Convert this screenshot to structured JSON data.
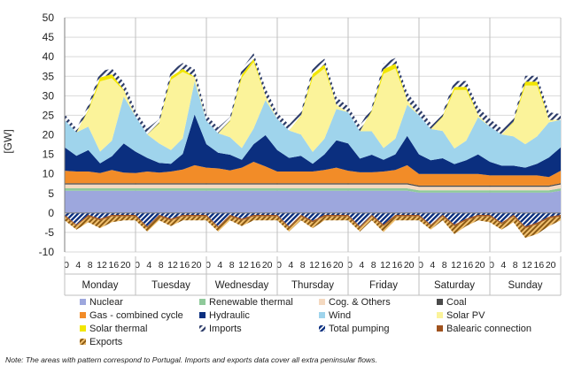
{
  "chart_data": {
    "type": "area",
    "ylabel": "[GW]",
    "ylim": [
      -10,
      50
    ],
    "yticks": [
      50,
      45,
      40,
      35,
      30,
      25,
      20,
      15,
      10,
      5,
      0,
      -5,
      -10
    ],
    "grid": true,
    "legend_position": "bottom",
    "days": [
      "Monday",
      "Tuesday",
      "Wednesday",
      "Thursday",
      "Friday",
      "Saturday",
      "Sunday"
    ],
    "hour_labels": [
      "0",
      "4",
      "8",
      "12",
      "16",
      "20"
    ],
    "x_hours": [
      0,
      4,
      8,
      12,
      16,
      20
    ],
    "series": [
      {
        "name": "Nuclear",
        "color": "#9da7dd",
        "pattern": false,
        "values": [
          [
            5.7,
            5.7,
            5.7,
            5.7,
            5.7,
            5.7
          ],
          [
            5.7,
            5.7,
            5.7,
            5.7,
            5.7,
            5.7
          ],
          [
            5.7,
            5.7,
            5.7,
            5.7,
            5.7,
            5.7
          ],
          [
            5.7,
            5.7,
            5.7,
            5.7,
            5.7,
            5.7
          ],
          [
            5.7,
            5.7,
            5.7,
            5.7,
            5.7,
            5.7
          ],
          [
            5.2,
            5.2,
            5.2,
            5.2,
            5.2,
            5.2
          ],
          [
            5.2,
            5.2,
            5.2,
            5.2,
            5.2,
            5.2
          ]
        ]
      },
      {
        "name": "Renewable thermal",
        "color": "#8fc99a",
        "pattern": false,
        "values": [
          [
            0.6,
            0.6,
            0.6,
            0.6,
            0.6,
            0.6
          ],
          [
            0.6,
            0.6,
            0.6,
            0.6,
            0.6,
            0.6
          ],
          [
            0.6,
            0.6,
            0.6,
            0.6,
            0.6,
            0.6
          ],
          [
            0.6,
            0.6,
            0.6,
            0.6,
            0.6,
            0.6
          ],
          [
            0.6,
            0.6,
            0.6,
            0.6,
            0.6,
            0.6
          ],
          [
            0.6,
            0.6,
            0.6,
            0.6,
            0.6,
            0.6
          ],
          [
            0.6,
            0.6,
            0.6,
            0.6,
            0.6,
            0.6
          ]
        ]
      },
      {
        "name": "Cog. & Others",
        "color": "#f4d9c0",
        "pattern": false,
        "values": [
          [
            1.0,
            1.0,
            1.0,
            1.0,
            1.0,
            1.0
          ],
          [
            1.0,
            1.0,
            1.0,
            1.0,
            1.0,
            1.0
          ],
          [
            1.0,
            1.0,
            1.0,
            1.0,
            1.0,
            1.0
          ],
          [
            1.0,
            1.0,
            1.0,
            1.0,
            1.0,
            1.0
          ],
          [
            1.0,
            1.0,
            1.0,
            1.0,
            1.0,
            1.0
          ],
          [
            0.9,
            0.9,
            0.9,
            0.9,
            0.9,
            0.9
          ],
          [
            0.9,
            0.9,
            0.9,
            0.9,
            0.9,
            0.9
          ]
        ]
      },
      {
        "name": "Coal",
        "color": "#4a4a4a",
        "pattern": false,
        "values": [
          [
            0.3,
            0.3,
            0.3,
            0.3,
            0.3,
            0.3
          ],
          [
            0.3,
            0.3,
            0.3,
            0.3,
            0.3,
            0.3
          ],
          [
            0.3,
            0.3,
            0.3,
            0.3,
            0.3,
            0.3
          ],
          [
            0.3,
            0.3,
            0.3,
            0.3,
            0.3,
            0.3
          ],
          [
            0.3,
            0.3,
            0.3,
            0.3,
            0.3,
            0.3
          ],
          [
            0.3,
            0.3,
            0.3,
            0.3,
            0.3,
            0.3
          ],
          [
            0.3,
            0.3,
            0.3,
            0.3,
            0.3,
            0.3
          ]
        ]
      },
      {
        "name": "Gas - combined cycle",
        "color": "#f28c28",
        "pattern": false,
        "values": [
          [
            3.2,
            3.0,
            3.0,
            2.6,
            3.4,
            2.7
          ],
          [
            2.6,
            3.0,
            2.7,
            3.0,
            3.5,
            4.6
          ],
          [
            4.0,
            3.8,
            3.3,
            4.0,
            5.5,
            4.3
          ],
          [
            3.0,
            3.0,
            3.0,
            3.0,
            3.4,
            4.0
          ],
          [
            3.2,
            2.8,
            2.8,
            3.0,
            3.4,
            4.6
          ],
          [
            3.0,
            3.0,
            3.0,
            3.0,
            3.0,
            3.0
          ],
          [
            2.6,
            2.6,
            2.6,
            2.6,
            2.6,
            2.2
          ]
        ]
      },
      {
        "name": "Hydraulic",
        "color": "#0b2f7f",
        "pattern": false,
        "values": [
          [
            6.0,
            4.0,
            5.5,
            2.5,
            3.5,
            7.5
          ],
          [
            5.5,
            3.5,
            2.5,
            2.0,
            4.0,
            13.0
          ],
          [
            6.0,
            4.0,
            4.0,
            2.0,
            4.5,
            8.0
          ],
          [
            5.5,
            3.5,
            4.0,
            2.0,
            4.0,
            7.0
          ],
          [
            7.0,
            3.5,
            4.5,
            3.0,
            4.0,
            7.5
          ],
          [
            5.0,
            3.5,
            4.0,
            2.5,
            3.5,
            5.0
          ],
          [
            3.5,
            2.5,
            2.5,
            2.0,
            3.0,
            5.0
          ]
        ]
      },
      {
        "name": "Wind",
        "color": "#9fd4ec",
        "pattern": false,
        "values": [
          [
            7.0,
            6.0,
            6.0,
            3.0,
            4.0,
            12.0
          ],
          [
            9.0,
            6.0,
            5.0,
            3.5,
            4.0,
            8.5
          ],
          [
            6.0,
            5.0,
            4.5,
            3.0,
            4.0,
            9.0
          ],
          [
            8.0,
            7.0,
            5.5,
            3.0,
            4.0,
            8.0
          ],
          [
            8.0,
            7.0,
            6.0,
            3.0,
            4.0,
            8.0
          ],
          [
            10.0,
            8.0,
            7.0,
            4.0,
            5.0,
            9.5
          ],
          [
            9.0,
            8.0,
            7.5,
            6.0,
            7.0,
            9.0
          ]
        ]
      },
      {
        "name": "Solar PV",
        "color": "#fbf39a",
        "pattern": false,
        "values": [
          [
            0.0,
            0.0,
            4.0,
            18.0,
            16.0,
            1.5
          ],
          [
            0.0,
            0.0,
            5.0,
            18.0,
            17.0,
            1.0
          ],
          [
            0.0,
            0.0,
            4.0,
            18.0,
            17.0,
            1.0
          ],
          [
            0.0,
            0.0,
            4.5,
            19.0,
            18.0,
            1.0
          ],
          [
            0.0,
            0.0,
            5.0,
            19.0,
            18.0,
            1.0
          ],
          [
            0.0,
            0.0,
            3.5,
            15.0,
            13.0,
            0.5
          ],
          [
            0.0,
            0.0,
            3.5,
            15.0,
            13.0,
            0.5
          ]
        ]
      },
      {
        "name": "Solar thermal",
        "color": "#f2e600",
        "pattern": false,
        "values": [
          [
            0.0,
            0.0,
            0.3,
            1.0,
            1.0,
            0.2
          ],
          [
            0.0,
            0.0,
            0.2,
            0.8,
            0.8,
            0.1
          ],
          [
            0.0,
            0.0,
            0.2,
            0.8,
            0.8,
            0.1
          ],
          [
            0.0,
            0.0,
            0.2,
            1.0,
            1.0,
            0.1
          ],
          [
            0.0,
            0.0,
            0.3,
            1.2,
            1.2,
            0.1
          ],
          [
            0.0,
            0.0,
            0.2,
            0.8,
            0.8,
            0.1
          ],
          [
            0.0,
            0.0,
            0.2,
            1.0,
            1.0,
            0.1
          ]
        ]
      },
      {
        "name": "Imports",
        "color": "#2b3a67",
        "pattern": true,
        "values": [
          [
            1.5,
            1.0,
            1.2,
            1.5,
            1.5,
            2.0
          ],
          [
            1.5,
            1.5,
            1.0,
            1.5,
            1.5,
            2.0
          ],
          [
            1.5,
            1.5,
            1.0,
            1.5,
            1.5,
            2.0
          ],
          [
            1.5,
            1.5,
            1.0,
            1.5,
            1.5,
            2.0
          ],
          [
            1.5,
            1.5,
            1.0,
            1.5,
            1.5,
            2.0
          ],
          [
            2.0,
            1.5,
            1.0,
            1.5,
            1.5,
            2.0
          ],
          [
            2.0,
            1.5,
            1.0,
            1.5,
            1.5,
            2.0
          ]
        ]
      },
      {
        "name": "Total pumping",
        "color": "#0b2f7f",
        "pattern": true,
        "values": [
          [
            -0.5,
            -3.0,
            -0.5,
            -1.5,
            -0.5,
            -0.5
          ],
          [
            -0.5,
            -3.5,
            -0.5,
            -1.5,
            -0.5,
            -0.5
          ],
          [
            -0.5,
            -3.5,
            -0.5,
            -1.5,
            -0.5,
            -0.5
          ],
          [
            -0.5,
            -3.5,
            -0.5,
            -2.0,
            -0.5,
            -0.5
          ],
          [
            -0.5,
            -3.5,
            -0.5,
            -3.0,
            -0.5,
            -0.5
          ],
          [
            -0.5,
            -3.0,
            -0.5,
            -3.0,
            -1.5,
            -0.5
          ],
          [
            -0.5,
            -2.5,
            -0.5,
            -3.5,
            -2.5,
            -1.0
          ]
        ]
      },
      {
        "name": "Balearic connection",
        "color": "#a0521e",
        "pattern": false,
        "values": [
          [
            -0.4,
            -0.3,
            -0.4,
            -0.4,
            -0.4,
            -0.4
          ],
          [
            -0.4,
            -0.3,
            -0.4,
            -0.4,
            -0.4,
            -0.4
          ],
          [
            -0.4,
            -0.3,
            -0.4,
            -0.4,
            -0.4,
            -0.4
          ],
          [
            -0.4,
            -0.3,
            -0.4,
            -0.4,
            -0.4,
            -0.4
          ],
          [
            -0.4,
            -0.3,
            -0.4,
            -0.4,
            -0.4,
            -0.4
          ],
          [
            -0.4,
            -0.3,
            -0.4,
            -0.4,
            -0.4,
            -0.4
          ],
          [
            -0.4,
            -0.3,
            -0.4,
            -0.4,
            -0.4,
            -0.4
          ]
        ]
      },
      {
        "name": "Exports",
        "color": "#8b5a14",
        "pattern": true,
        "values": [
          [
            -1.0,
            -1.0,
            -1.5,
            -2.0,
            -1.5,
            -1.0
          ],
          [
            -1.0,
            -1.0,
            -1.0,
            -1.5,
            -1.0,
            -1.0
          ],
          [
            -1.0,
            -1.0,
            -1.0,
            -1.5,
            -1.0,
            -1.0
          ],
          [
            -1.0,
            -1.0,
            -1.0,
            -1.5,
            -1.0,
            -1.0
          ],
          [
            -1.0,
            -1.0,
            -1.0,
            -1.5,
            -1.0,
            -1.0
          ],
          [
            -1.0,
            -1.0,
            -1.0,
            -2.0,
            -1.5,
            -1.0
          ],
          [
            -1.5,
            -1.5,
            -1.5,
            -2.5,
            -2.5,
            -2.0
          ]
        ]
      }
    ],
    "legend_order": [
      "Nuclear",
      "Renewable thermal",
      "Cog. & Others",
      "Coal",
      "Gas - combined cycle",
      "Hydraulic",
      "Wind",
      "Solar PV",
      "Solar thermal",
      "Imports",
      "Total pumping",
      "Balearic connection",
      "Exports"
    ]
  },
  "note": "Note: The areas with pattern correspond to Portugal. Imports and exports data cover all extra peninsular flows."
}
